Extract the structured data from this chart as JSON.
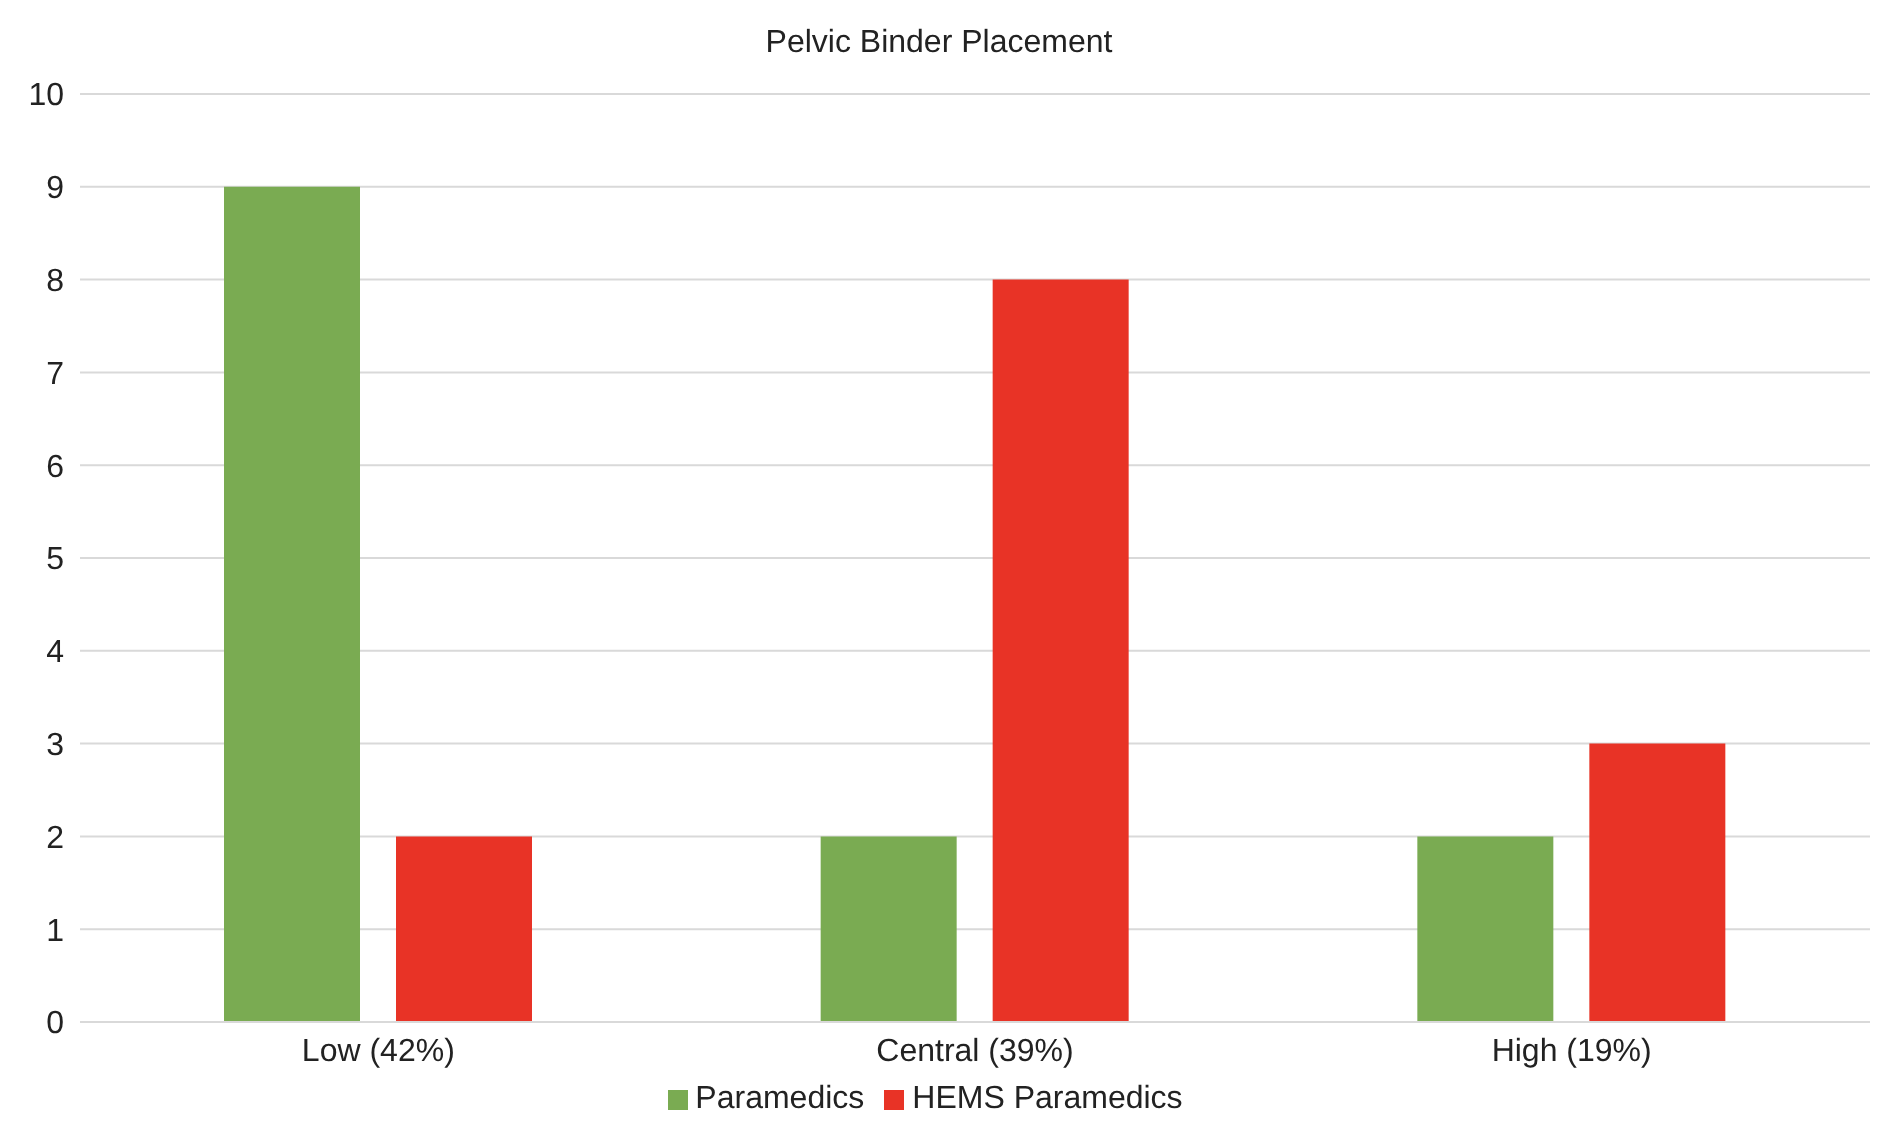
{
  "chart_data": {
    "type": "bar",
    "title": "Pelvic Binder Placement",
    "categories": [
      "Low (42%)",
      "Central (39%)",
      "High (19%)"
    ],
    "series": [
      {
        "name": "Paramedics",
        "color": "#7aab52",
        "values": [
          9,
          2,
          2
        ]
      },
      {
        "name": "HEMS Paramedics",
        "color": "#e83326",
        "values": [
          2,
          8,
          3
        ]
      }
    ],
    "ylim": [
      0,
      10
    ],
    "yticks": [
      0,
      1,
      2,
      3,
      4,
      5,
      6,
      7,
      8,
      9,
      10
    ],
    "grid": "y",
    "legend": "bottom"
  }
}
